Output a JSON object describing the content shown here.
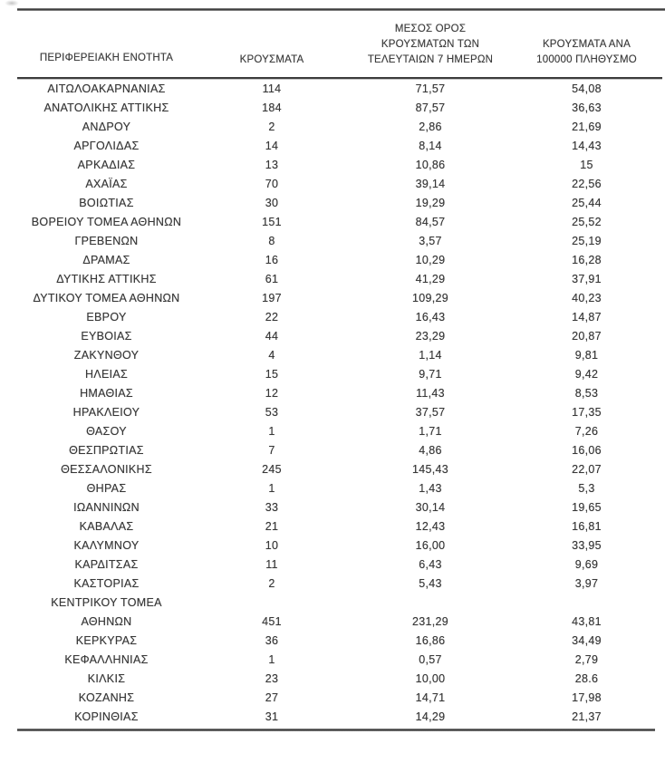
{
  "colors": {
    "text": "#3a3a3a",
    "rule": "#4a4a4a",
    "background": "#ffffff"
  },
  "table": {
    "columns": [
      {
        "id": "region",
        "lines": [
          "ΠΕΡΙΦΕΡΕΙΑΚΗ ΕΝΟΤΗΤΑ"
        ]
      },
      {
        "id": "cases",
        "lines": [
          "ΚΡΟΥΣΜΑΤΑ"
        ]
      },
      {
        "id": "avg7",
        "lines": [
          "ΜΕΣΟΣ ΟΡΟΣ",
          "ΚΡΟΥΣΜΑΤΩΝ ΤΩΝ",
          "ΤΕΛΕΥΤΑΙΩΝ 7 ΗΜΕΡΩΝ"
        ]
      },
      {
        "id": "per100k",
        "lines": [
          "ΚΡΟΥΣΜΑΤΑ ΑΝΑ",
          "100000 ΠΛΗΘΥΣΜΟ"
        ]
      }
    ],
    "rows": [
      {
        "name": "ΑΙΤΩΛΟΑΚΑΡΝΑΝΙΑΣ",
        "cases": "114",
        "avg7": "71,57",
        "per100k": "54,08"
      },
      {
        "name": "ΑΝΑΤΟΛΙΚΗΣ ΑΤΤΙΚΗΣ",
        "cases": "184",
        "avg7": "87,57",
        "per100k": "36,63"
      },
      {
        "name": "ΑΝΔΡΟΥ",
        "cases": "2",
        "avg7": "2,86",
        "per100k": "21,69"
      },
      {
        "name": "ΑΡΓΟΛΙΔΑΣ",
        "cases": "14",
        "avg7": "8,14",
        "per100k": "14,43"
      },
      {
        "name": "ΑΡΚΑΔΙΑΣ",
        "cases": "13",
        "avg7": "10,86",
        "per100k": "15"
      },
      {
        "name": "ΑΧΑΪΑΣ",
        "cases": "70",
        "avg7": "39,14",
        "per100k": "22,56"
      },
      {
        "name": "ΒΟΙΩΤΙΑΣ",
        "cases": "30",
        "avg7": "19,29",
        "per100k": "25,44"
      },
      {
        "name": "ΒΟΡΕΙΟΥ ΤΟΜΕΑ ΑΘΗΝΩΝ",
        "cases": "151",
        "avg7": "84,57",
        "per100k": "25,52"
      },
      {
        "name": "ΓΡΕΒΕΝΩΝ",
        "cases": "8",
        "avg7": "3,57",
        "per100k": "25,19"
      },
      {
        "name": "ΔΡΑΜΑΣ",
        "cases": "16",
        "avg7": "10,29",
        "per100k": "16,28"
      },
      {
        "name": "ΔΥΤΙΚΗΣ ΑΤΤΙΚΗΣ",
        "cases": "61",
        "avg7": "41,29",
        "per100k": "37,91"
      },
      {
        "name": "ΔΥΤΙΚΟΥ ΤΟΜΕΑ ΑΘΗΝΩΝ",
        "cases": "197",
        "avg7": "109,29",
        "per100k": "40,23"
      },
      {
        "name": "ΕΒΡΟΥ",
        "cases": "22",
        "avg7": "16,43",
        "per100k": "14,87"
      },
      {
        "name": "ΕΥΒΟΙΑΣ",
        "cases": "44",
        "avg7": "23,29",
        "per100k": "20,87"
      },
      {
        "name": "ΖΑΚΥΝΘΟΥ",
        "cases": "4",
        "avg7": "1,14",
        "per100k": "9,81"
      },
      {
        "name": "ΗΛΕΙΑΣ",
        "cases": "15",
        "avg7": "9,71",
        "per100k": "9,42"
      },
      {
        "name": "ΗΜΑΘΙΑΣ",
        "cases": "12",
        "avg7": "11,43",
        "per100k": "8,53"
      },
      {
        "name": "ΗΡΑΚΛΕΙΟΥ",
        "cases": "53",
        "avg7": "37,57",
        "per100k": "17,35"
      },
      {
        "name": "ΘΑΣΟΥ",
        "cases": "1",
        "avg7": "1,71",
        "per100k": "7,26"
      },
      {
        "name": "ΘΕΣΠΡΩΤΙΑΣ",
        "cases": "7",
        "avg7": "4,86",
        "per100k": "16,06"
      },
      {
        "name": "ΘΕΣΣΑΛΟΝΙΚΗΣ",
        "cases": "245",
        "avg7": "145,43",
        "per100k": "22,07"
      },
      {
        "name": "ΘΗΡΑΣ",
        "cases": "1",
        "avg7": "1,43",
        "per100k": "5,3"
      },
      {
        "name": "ΙΩΑΝΝΙΝΩΝ",
        "cases": "33",
        "avg7": "30,14",
        "per100k": "19,65"
      },
      {
        "name": "ΚΑΒΑΛΑΣ",
        "cases": "21",
        "avg7": "12,43",
        "per100k": "16,81"
      },
      {
        "name": "ΚΑΛΥΜΝΟΥ",
        "cases": "10",
        "avg7": "16,00",
        "per100k": "33,95"
      },
      {
        "name": "ΚΑΡΔΙΤΣΑΣ",
        "cases": "11",
        "avg7": "6,43",
        "per100k": "9,69"
      },
      {
        "name": "ΚΑΣΤΟΡΙΑΣ",
        "cases": "2",
        "avg7": "5,43",
        "per100k": "3,97"
      },
      {
        "name": "ΚΕΝΤΡΙΚΟΥ ΤΟΜΕΑ",
        "name2": "ΑΘΗΝΩΝ",
        "cases": "451",
        "avg7": "231,29",
        "per100k": "43,81"
      },
      {
        "name": "ΚΕΡΚΥΡΑΣ",
        "cases": "36",
        "avg7": "16,86",
        "per100k": "34,49"
      },
      {
        "name": "ΚΕΦΑΛΛΗΝΙΑΣ",
        "cases": "1",
        "avg7": "0,57",
        "per100k": "2,79"
      },
      {
        "name": "ΚΙΛΚΙΣ",
        "cases": "23",
        "avg7": "10,00",
        "per100k": "28.6"
      },
      {
        "name": "ΚΟΖΑΝΗΣ",
        "cases": "27",
        "avg7": "14,71",
        "per100k": "17,98"
      },
      {
        "name": "ΚΟΡΙΝΘΙΑΣ",
        "cases": "31",
        "avg7": "14,29",
        "per100k": "21,37"
      }
    ]
  }
}
